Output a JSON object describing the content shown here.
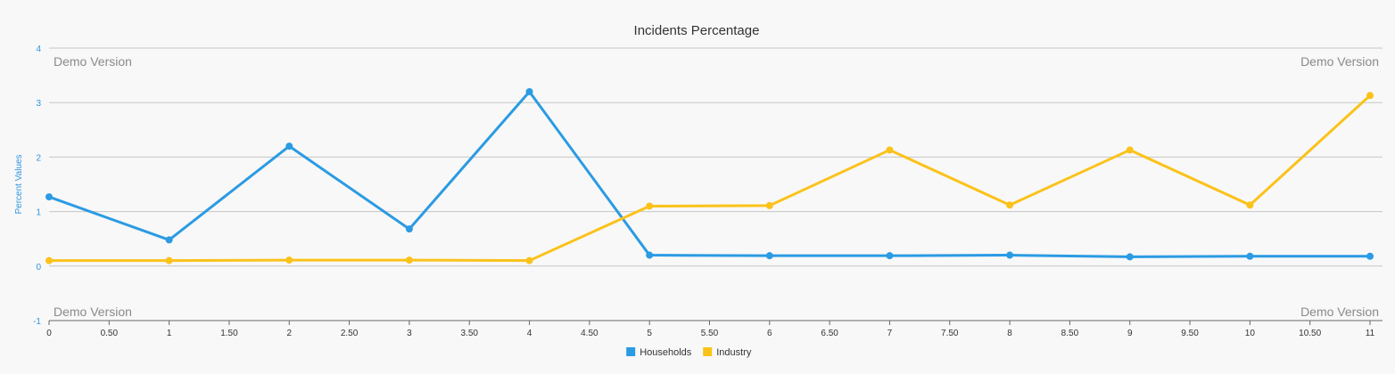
{
  "chart_data": {
    "type": "line",
    "title": "Incidents Percentage",
    "ylabel": "Percent Values",
    "xlabel": "",
    "xlim": [
      0,
      11
    ],
    "ylim": [
      -1,
      4
    ],
    "x_ticks": [
      "0",
      "0.50",
      "1",
      "1.50",
      "2",
      "2.50",
      "3",
      "3.50",
      "4",
      "4.50",
      "5",
      "5.50",
      "6",
      "6.50",
      "7",
      "7.50",
      "8",
      "8.50",
      "9",
      "9.50",
      "10",
      "10.50",
      "11"
    ],
    "y_ticks": [
      "-1",
      "0",
      "1",
      "2",
      "3",
      "4"
    ],
    "grid": true,
    "legend_position": "bottom-center",
    "x": [
      0,
      1,
      2,
      3,
      4,
      5,
      6,
      7,
      8,
      9,
      10,
      11
    ],
    "series": [
      {
        "name": "Households",
        "color": "#2b9be3",
        "values": [
          1.27,
          0.48,
          2.2,
          0.68,
          3.2,
          0.2,
          0.19,
          0.19,
          0.2,
          0.17,
          0.18,
          0.18
        ]
      },
      {
        "name": "Industry",
        "color": "#fbc21a",
        "values": [
          0.1,
          0.1,
          0.11,
          0.11,
          0.1,
          1.1,
          1.11,
          2.13,
          1.12,
          2.13,
          1.12,
          3.13
        ]
      }
    ]
  },
  "watermark": {
    "text": "Demo Version"
  }
}
